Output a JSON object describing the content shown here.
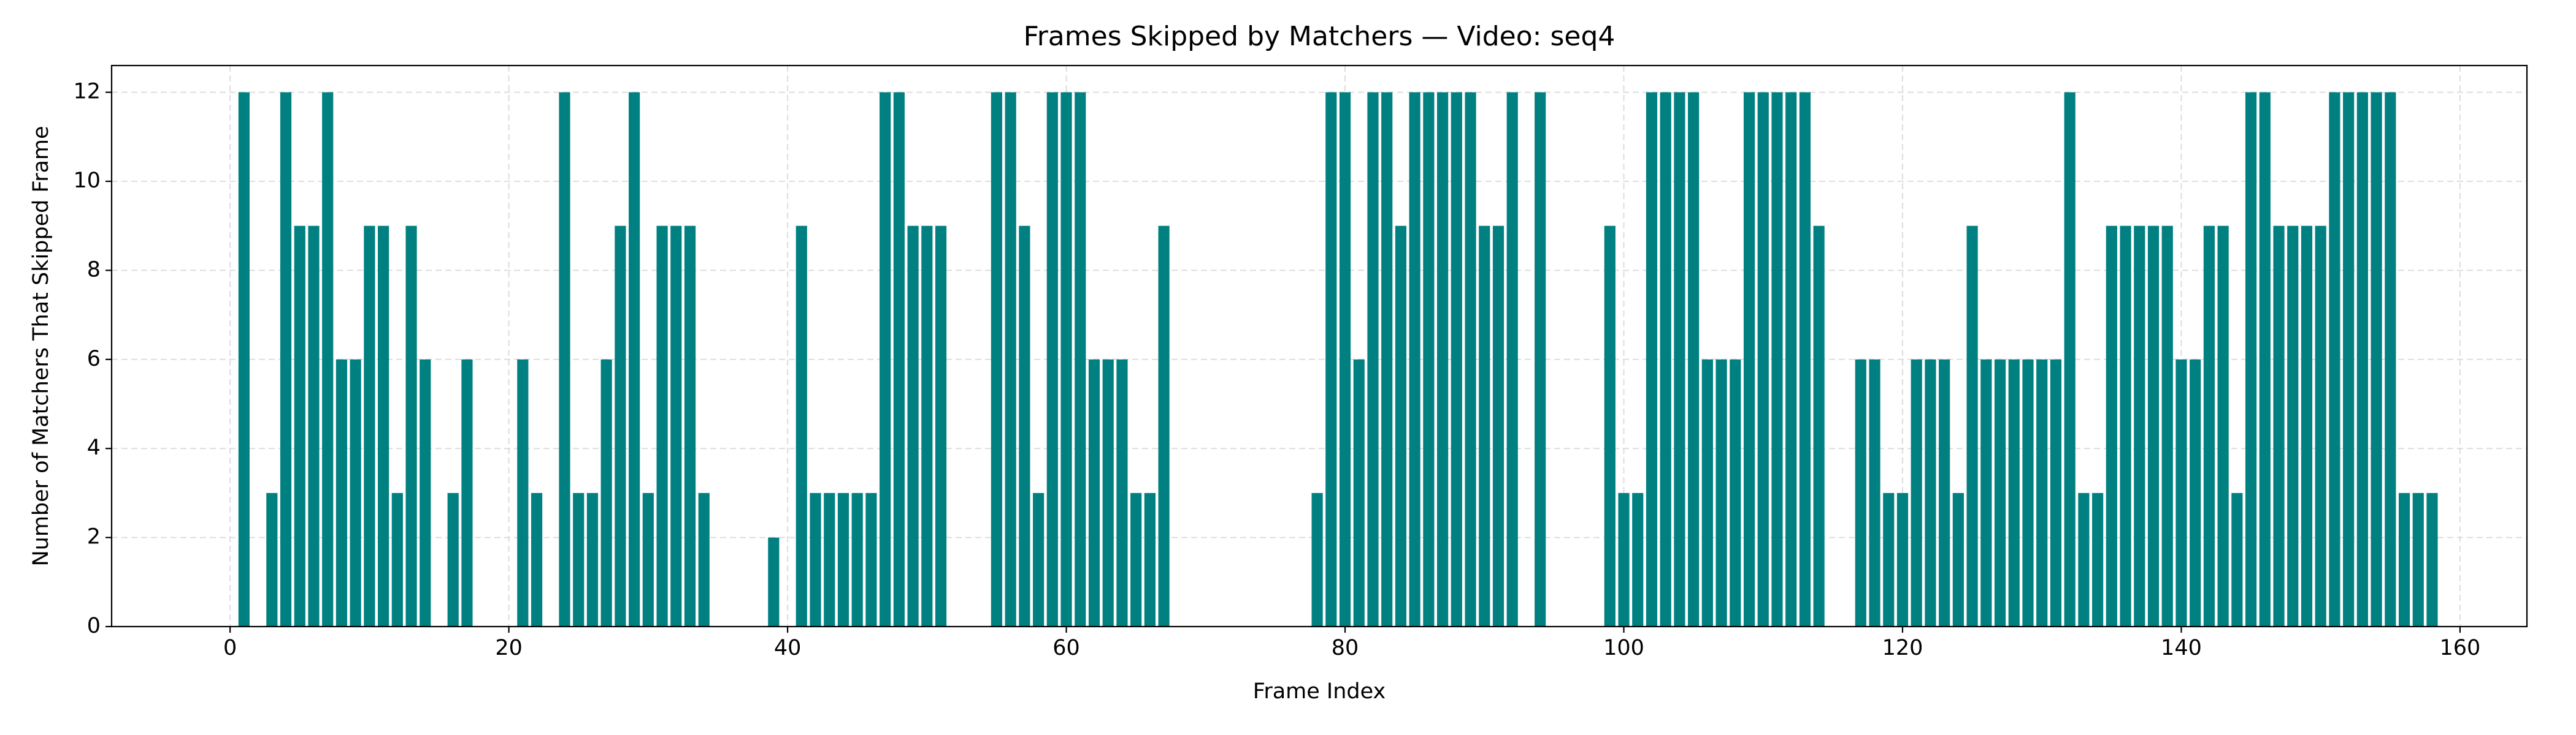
{
  "chart_data": {
    "type": "bar",
    "title": "Frames Skipped by Matchers — Video: seq4",
    "xlabel": "Frame Index",
    "ylabel": "Number of Matchers That Skipped Frame",
    "color": "#008080",
    "x": [
      0,
      1,
      2,
      3,
      4,
      5,
      6,
      7,
      8,
      9,
      10,
      11,
      12,
      13,
      14,
      15,
      16,
      17,
      18,
      19,
      20,
      21,
      22,
      23,
      24,
      25,
      26,
      27,
      28,
      29,
      30,
      31,
      32,
      33,
      34,
      35,
      36,
      37,
      38,
      39,
      40,
      41,
      42,
      43,
      44,
      45,
      46,
      47,
      48,
      49,
      50,
      51,
      52,
      53,
      54,
      55,
      56,
      57,
      58,
      59,
      60,
      61,
      62,
      63,
      64,
      65,
      66,
      67,
      68,
      69,
      70,
      71,
      72,
      73,
      74,
      75,
      76,
      77,
      78,
      79,
      80,
      81,
      82,
      83,
      84,
      85,
      86,
      87,
      88,
      89,
      90,
      91,
      92,
      93,
      94,
      95,
      96,
      97,
      98,
      99,
      100,
      101,
      102,
      103,
      104,
      105,
      106,
      107,
      108,
      109,
      110,
      111,
      112,
      113,
      114,
      115,
      116,
      117,
      118,
      119,
      120,
      121,
      122,
      123,
      124,
      125,
      126,
      127,
      128,
      129,
      130,
      131,
      132,
      133,
      134,
      135,
      136,
      137,
      138,
      139,
      140,
      141,
      142,
      143,
      144,
      145,
      146,
      147,
      148,
      149,
      150,
      151,
      152,
      153,
      154,
      155,
      156,
      157,
      158
    ],
    "values": [
      0,
      12,
      0,
      3,
      12,
      9,
      9,
      12,
      6,
      6,
      9,
      9,
      3,
      9,
      6,
      0,
      3,
      6,
      0,
      0,
      0,
      6,
      3,
      0,
      12,
      3,
      3,
      6,
      9,
      12,
      3,
      9,
      9,
      9,
      3,
      0,
      0,
      0,
      0,
      2,
      0,
      9,
      3,
      3,
      3,
      3,
      3,
      12,
      12,
      9,
      9,
      9,
      0,
      0,
      0,
      12,
      12,
      9,
      3,
      12,
      12,
      12,
      6,
      6,
      6,
      3,
      3,
      9,
      0,
      0,
      0,
      0,
      0,
      0,
      0,
      0,
      0,
      0,
      3,
      12,
      12,
      6,
      12,
      12,
      9,
      12,
      12,
      12,
      12,
      12,
      9,
      9,
      12,
      0,
      12,
      0,
      0,
      0,
      0,
      9,
      3,
      3,
      12,
      12,
      12,
      12,
      6,
      6,
      6,
      12,
      12,
      12,
      12,
      12,
      9,
      0,
      0,
      6,
      6,
      3,
      3,
      6,
      6,
      6,
      3,
      9,
      6,
      6,
      6,
      6,
      6,
      6,
      12,
      3,
      3,
      9,
      9,
      9,
      9,
      9,
      6,
      6,
      9,
      9,
      3,
      12,
      12,
      9,
      9,
      9,
      9,
      12,
      12,
      12,
      12,
      12,
      3,
      3,
      3
    ],
    "xlim": [
      -8.5,
      164.8
    ],
    "xticks": [
      0,
      20,
      40,
      60,
      80,
      100,
      120,
      140,
      160
    ],
    "ylim": [
      0,
      12.6
    ],
    "yticks": [
      0,
      2,
      4,
      6,
      8,
      10,
      12
    ],
    "grid": true
  }
}
